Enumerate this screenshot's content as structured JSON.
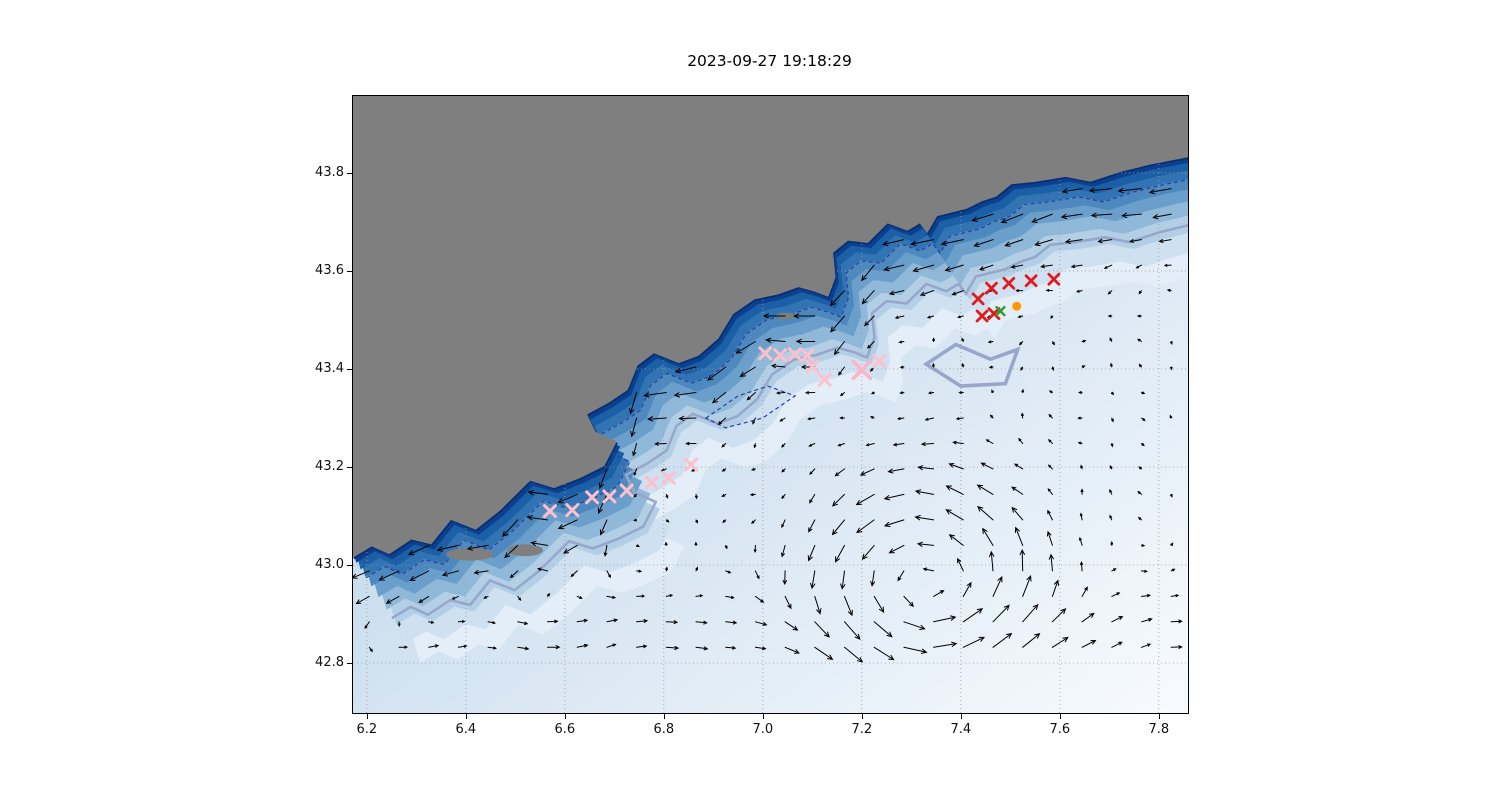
{
  "chart_data": {
    "type": "map_quiver",
    "title": "2023-09-27 19:18:29",
    "xlabel": "",
    "ylabel": "",
    "xlim": [
      6.172,
      7.859
    ],
    "ylim": [
      42.698,
      43.957
    ],
    "x_ticks": [
      6.2,
      6.4,
      6.6,
      6.8,
      7.0,
      7.2,
      7.4,
      7.6,
      7.8
    ],
    "x_tick_labels": [
      "6.2",
      "6.4",
      "6.6",
      "6.8",
      "7.0",
      "7.2",
      "7.4",
      "7.6",
      "7.8"
    ],
    "y_ticks": [
      42.8,
      43.0,
      43.2,
      43.4,
      43.6,
      43.8
    ],
    "y_tick_labels": [
      "42.8",
      "43.0",
      "43.2",
      "43.4",
      "43.6",
      "43.8"
    ],
    "grid": {
      "show": true,
      "color": "#9a9a9a",
      "style": "dotted"
    },
    "land": {
      "color": "#7f7f7f",
      "coastline": [
        [
          6.172,
          43.015
        ],
        [
          6.21,
          43.038
        ],
        [
          6.245,
          43.022
        ],
        [
          6.29,
          43.052
        ],
        [
          6.33,
          43.042
        ],
        [
          6.37,
          43.092
        ],
        [
          6.42,
          43.072
        ],
        [
          6.47,
          43.112
        ],
        [
          6.53,
          43.172
        ],
        [
          6.578,
          43.157
        ],
        [
          6.63,
          43.177
        ],
        [
          6.68,
          43.202
        ],
        [
          6.705,
          43.252
        ],
        [
          6.662,
          43.272
        ],
        [
          6.645,
          43.307
        ],
        [
          6.69,
          43.332
        ],
        [
          6.727,
          43.357
        ],
        [
          6.747,
          43.407
        ],
        [
          6.78,
          43.432
        ],
        [
          6.83,
          43.412
        ],
        [
          6.87,
          43.427
        ],
        [
          6.91,
          43.462
        ],
        [
          6.94,
          43.512
        ],
        [
          6.983,
          43.542
        ],
        [
          7.03,
          43.552
        ],
        [
          7.072,
          43.567
        ],
        [
          7.107,
          43.557
        ],
        [
          7.132,
          43.547
        ],
        [
          7.147,
          43.587
        ],
        [
          7.142,
          43.637
        ],
        [
          7.172,
          43.662
        ],
        [
          7.212,
          43.657
        ],
        [
          7.252,
          43.697
        ],
        [
          7.292,
          43.682
        ],
        [
          7.317,
          43.697
        ],
        [
          7.332,
          43.677
        ],
        [
          7.352,
          43.712
        ],
        [
          7.412,
          43.727
        ],
        [
          7.442,
          43.742
        ],
        [
          7.472,
          43.752
        ],
        [
          7.502,
          43.777
        ],
        [
          7.552,
          43.782
        ],
        [
          7.612,
          43.792
        ],
        [
          7.662,
          43.782
        ],
        [
          7.722,
          43.802
        ],
        [
          7.782,
          43.817
        ],
        [
          7.859,
          43.832
        ]
      ],
      "islands": [
        {
          "center": [
            6.408,
            43.022
          ],
          "rx": 0.048,
          "ry": 0.013
        },
        {
          "center": [
            6.52,
            43.03
          ],
          "rx": 0.036,
          "ry": 0.012
        },
        {
          "center": [
            7.047,
            43.508
          ],
          "rx": 0.02,
          "ry": 0.007
        }
      ]
    },
    "sea": {
      "base_gradient": [
        "#aecbe4",
        "#f8fbfe"
      ],
      "depth_bands": [
        {
          "offset": 125,
          "color": "#e4eef8"
        },
        {
          "offset": 101,
          "color": "#cfe1f1"
        },
        {
          "offset": 80,
          "color": "#b3cfe6"
        },
        {
          "offset": 62,
          "color": "#8fb8d9"
        },
        {
          "offset": 47,
          "color": "#6b9fcb"
        },
        {
          "offset": 34,
          "color": "#4d88bf"
        },
        {
          "offset": 23,
          "color": "#3273b3"
        },
        {
          "offset": 14,
          "color": "#1b5fa6"
        },
        {
          "offset": 6,
          "color": "#0b4091"
        },
        {
          "offset": 2,
          "color": "#083070"
        }
      ]
    },
    "contours": {
      "inner": {
        "color": "#27409f",
        "dash": "4 3",
        "width": 1.2,
        "offset": 24,
        "loop": [
          [
            6.885,
            43.3
          ],
          [
            6.95,
            43.345
          ],
          [
            7.01,
            43.365
          ],
          [
            7.065,
            43.345
          ],
          [
            7.0,
            43.3
          ],
          [
            6.925,
            43.28
          ]
        ]
      },
      "outer": {
        "color": "#98a6cb",
        "width": 2.6,
        "offset": 72,
        "loop": [
          [
            7.33,
            43.41
          ],
          [
            7.39,
            43.45
          ],
          [
            7.46,
            43.42
          ],
          [
            7.515,
            43.44
          ],
          [
            7.49,
            43.37
          ],
          [
            7.4,
            43.365
          ]
        ]
      }
    },
    "quiver": {
      "color": "#000000",
      "grid": {
        "lon_start": 6.205,
        "lon_step": 0.06,
        "cols": 28,
        "lat_start": 42.832,
        "lat_step": 0.052,
        "rows": 20
      },
      "coast_ridge": [
        [
          6.172,
          43.01
        ],
        [
          6.37,
          43.09
        ],
        [
          6.47,
          43.11
        ],
        [
          6.53,
          43.17
        ],
        [
          6.6,
          43.16
        ],
        [
          6.68,
          43.2
        ],
        [
          6.747,
          43.41
        ],
        [
          6.87,
          43.43
        ],
        [
          7.03,
          43.55
        ],
        [
          7.13,
          43.55
        ],
        [
          7.25,
          43.69
        ],
        [
          7.42,
          43.73
        ],
        [
          7.61,
          43.79
        ],
        [
          7.859,
          43.83
        ]
      ],
      "jet": {
        "speed": 1.1,
        "peak_dist": 0.05,
        "width": 0.13
      },
      "eddy": {
        "center": [
          7.33,
          42.95
        ],
        "radius": 0.17,
        "width": 0.15,
        "speed": 1.0,
        "rotation": "ccw"
      },
      "south_band": {
        "lat": 42.86,
        "width": 0.1,
        "speed": 0.5
      },
      "noise": 0.1
    },
    "markers": {
      "pink_x": {
        "color": "#ffc0cb",
        "size": 11,
        "stroke": 3,
        "points": [
          [
            6.57,
            43.11
          ],
          [
            6.615,
            43.112
          ],
          [
            6.655,
            43.138
          ],
          [
            6.69,
            43.14
          ],
          [
            6.725,
            43.152
          ],
          [
            6.775,
            43.168
          ],
          [
            6.81,
            43.178
          ],
          [
            6.855,
            43.205
          ],
          [
            7.005,
            43.432
          ],
          [
            7.035,
            43.428
          ],
          [
            7.065,
            43.43
          ],
          [
            7.09,
            43.428
          ],
          [
            7.1,
            43.405
          ],
          [
            7.125,
            43.378
          ],
          [
            7.235,
            43.416
          ]
        ]
      },
      "pink_x_large": {
        "color": "#ffb3c6",
        "size": 17,
        "stroke": 3.5,
        "points": [
          [
            7.2,
            43.398
          ]
        ]
      },
      "red_x": {
        "color": "#e01b1b",
        "size": 10,
        "stroke": 2.8,
        "points": [
          [
            7.435,
            43.543
          ],
          [
            7.462,
            43.565
          ],
          [
            7.497,
            43.575
          ],
          [
            7.542,
            43.58
          ],
          [
            7.588,
            43.583
          ],
          [
            7.443,
            43.508
          ],
          [
            7.467,
            43.513
          ]
        ]
      },
      "green_x": {
        "color": "#2ca02c",
        "size": 8,
        "stroke": 2.4,
        "points": [
          [
            7.48,
            43.518
          ]
        ]
      },
      "orange_dot": {
        "color": "#ff9800",
        "size": 9,
        "points": [
          [
            7.513,
            43.528
          ]
        ]
      }
    }
  }
}
